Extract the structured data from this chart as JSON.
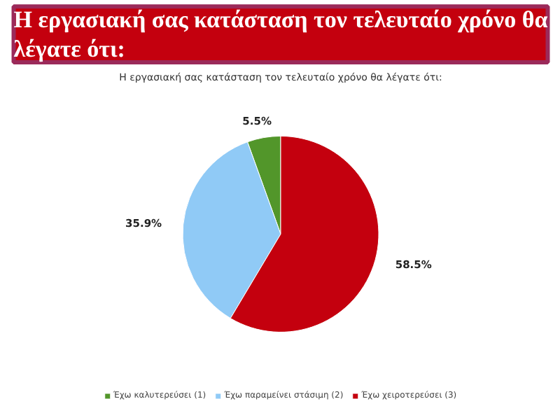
{
  "chart_data": {
    "type": "pie",
    "title": "Η εργασιακή σας κατάσταση τον τελευταίο χρόνο θα λέγατε ότι:",
    "subtitle": "Η εργασιακή σας κατάσταση τον τελευταίο χρόνο θα λέγατε ότι:",
    "categories": [
      "Έχω καλυτερεύσει (1)",
      "Έχω παραμείνει στάσιμη (2)",
      "Έχω χειροτερεύσει (3)"
    ],
    "values": [
      5.5,
      35.9,
      58.5
    ],
    "colors": [
      "#52962a",
      "#90caf6",
      "#c4000e"
    ],
    "value_labels": [
      "5.5%",
      "35.9%",
      "58.5%"
    ],
    "legend": "bottom"
  }
}
